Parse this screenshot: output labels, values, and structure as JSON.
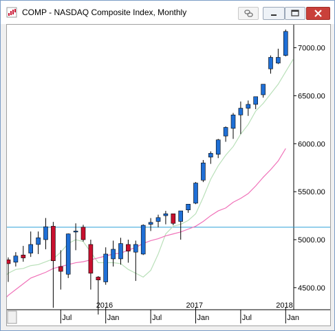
{
  "window": {
    "title": "COMP - NASDAQ Composite Index, Monthly",
    "icons": [
      "app-icon",
      "link-icon",
      "minimize-icon",
      "maximize-icon",
      "close-icon"
    ]
  },
  "chart_data": {
    "type": "candlestick",
    "title": "COMP - NASDAQ Composite Index, Monthly",
    "price_ticks": [
      "4500.00",
      "5000.00",
      "5500.00",
      "6000.00",
      "6500.00",
      "7000.00"
    ],
    "year_labels": [
      {
        "label": "2016",
        "at": "2016-01"
      },
      {
        "label": "2017",
        "at": "2017-01"
      },
      {
        "label": "2018",
        "at": "2018-01"
      }
    ],
    "month_labels": [
      {
        "label": "Jul",
        "at": "2015-07"
      },
      {
        "label": "Jan",
        "at": "2016-01"
      },
      {
        "label": "Jul",
        "at": "2016-07"
      },
      {
        "label": "Jan",
        "at": "2017-01"
      },
      {
        "label": "Jul",
        "at": "2017-07"
      },
      {
        "label": "Jan",
        "at": "2018-01"
      }
    ],
    "first_month": "2014-12",
    "ylim": [
      4270,
      7240
    ],
    "horizontal_line": 5130,
    "colors": {
      "up": "#1f6fd6",
      "down": "#c8102e",
      "wick": "#000000",
      "ma_short": "#b9e0b9",
      "ma_long": "#f070b8",
      "hline": "#2a9fd6"
    },
    "candles": [
      {
        "month": "2014-12",
        "open": 4790,
        "high": 4815,
        "low": 4560,
        "close": 4750
      },
      {
        "month": "2015-01",
        "open": 4765,
        "high": 4870,
        "low": 4720,
        "close": 4830
      },
      {
        "month": "2015-02",
        "open": 4840,
        "high": 4935,
        "low": 4770,
        "close": 4810
      },
      {
        "month": "2015-03",
        "open": 4860,
        "high": 5085,
        "low": 4820,
        "close": 4950
      },
      {
        "month": "2015-04",
        "open": 4950,
        "high": 5085,
        "low": 4850,
        "close": 5020
      },
      {
        "month": "2015-05",
        "open": 5000,
        "high": 5225,
        "low": 4900,
        "close": 5135
      },
      {
        "month": "2015-06",
        "open": 5140,
        "high": 5185,
        "low": 4290,
        "close": 4780
      },
      {
        "month": "2015-07",
        "open": 4720,
        "high": 4890,
        "low": 4480,
        "close": 4670
      },
      {
        "month": "2015-08",
        "open": 4640,
        "high": 5065,
        "low": 4600,
        "close": 5060
      },
      {
        "month": "2015-09",
        "open": 5080,
        "high": 5170,
        "low": 4890,
        "close": 5090
      },
      {
        "month": "2015-10",
        "open": 5130,
        "high": 5155,
        "low": 4980,
        "close": 5000
      },
      {
        "month": "2015-11",
        "open": 4950,
        "high": 5000,
        "low": 4480,
        "close": 4650
      },
      {
        "month": "2015-12",
        "open": 4610,
        "high": 4620,
        "low": 4220,
        "close": 4580
      },
      {
        "month": "2016-01",
        "open": 4560,
        "high": 4920,
        "low": 4530,
        "close": 4850
      },
      {
        "month": "2016-02",
        "open": 4800,
        "high": 4990,
        "low": 4720,
        "close": 4900
      },
      {
        "month": "2016-03",
        "open": 4800,
        "high": 5020,
        "low": 4740,
        "close": 4960
      },
      {
        "month": "2016-04",
        "open": 4950,
        "high": 5000,
        "low": 4760,
        "close": 4880
      },
      {
        "month": "2016-05",
        "open": 4870,
        "high": 4990,
        "low": 4570,
        "close": 4950
      },
      {
        "month": "2016-06",
        "open": 4850,
        "high": 5160,
        "low": 4840,
        "close": 5150
      },
      {
        "month": "2016-07",
        "open": 5160,
        "high": 5225,
        "low": 5090,
        "close": 5180
      },
      {
        "month": "2016-08",
        "open": 5190,
        "high": 5260,
        "low": 5130,
        "close": 5230
      },
      {
        "month": "2016-09",
        "open": 5250,
        "high": 5300,
        "low": 5160,
        "close": 5270
      },
      {
        "month": "2016-10",
        "open": 5270,
        "high": 5270,
        "low": 5150,
        "close": 5170
      },
      {
        "month": "2016-11",
        "open": 5190,
        "high": 5290,
        "low": 5000,
        "close": 5300
      },
      {
        "month": "2016-12",
        "open": 5310,
        "high": 5370,
        "low": 5280,
        "close": 5370
      },
      {
        "month": "2017-01",
        "open": 5380,
        "high": 5600,
        "low": 5370,
        "close": 5590
      },
      {
        "month": "2017-02",
        "open": 5620,
        "high": 5830,
        "low": 5600,
        "close": 5800
      },
      {
        "month": "2017-03",
        "open": 5860,
        "high": 5920,
        "low": 5790,
        "close": 5900
      },
      {
        "month": "2017-04",
        "open": 5890,
        "high": 6050,
        "low": 5850,
        "close": 6040
      },
      {
        "month": "2017-05",
        "open": 6080,
        "high": 6180,
        "low": 6020,
        "close": 6170
      },
      {
        "month": "2017-06",
        "open": 6160,
        "high": 6320,
        "low": 6050,
        "close": 6300
      },
      {
        "month": "2017-07",
        "open": 6300,
        "high": 6440,
        "low": 6100,
        "close": 6370
      },
      {
        "month": "2017-08",
        "open": 6370,
        "high": 6450,
        "low": 6290,
        "close": 6410
      },
      {
        "month": "2017-09",
        "open": 6410,
        "high": 6480,
        "low": 6360,
        "close": 6490
      },
      {
        "month": "2017-10",
        "open": 6510,
        "high": 6610,
        "low": 6480,
        "close": 6620
      },
      {
        "month": "2017-11",
        "open": 6780,
        "high": 6920,
        "low": 6730,
        "close": 6900
      },
      {
        "month": "2017-12",
        "open": 6840,
        "high": 6990,
        "low": 6830,
        "close": 6900
      },
      {
        "month": "2018-01",
        "open": 6920,
        "high": 7190,
        "low": 6910,
        "close": 7170
      }
    ],
    "ma_short": [
      4500,
      4580,
      4650,
      4690,
      4700,
      4730,
      4740,
      4770,
      4800,
      4870,
      4960,
      5000,
      4980,
      4870,
      4760,
      4760,
      4760,
      4750,
      4690,
      4650,
      4610,
      4680,
      4850,
      5060,
      5140,
      5160,
      5200,
      5270,
      5440,
      5630,
      5770,
      5880,
      5970,
      6100,
      6200,
      6340,
      6420,
      6520,
      6620,
      6750,
      6880
    ],
    "ma_long": [
      4270,
      4340,
      4420,
      4480,
      4540,
      4600,
      4630,
      4660,
      4700,
      4720,
      4740,
      4760,
      4770,
      4790,
      4810,
      4830,
      4850,
      4860,
      4890,
      4920,
      4960,
      4990,
      5010,
      5040,
      5060,
      5080,
      5110,
      5140,
      5190,
      5250,
      5300,
      5330,
      5390,
      5430,
      5480,
      5560,
      5650,
      5730,
      5820,
      5950
    ]
  }
}
